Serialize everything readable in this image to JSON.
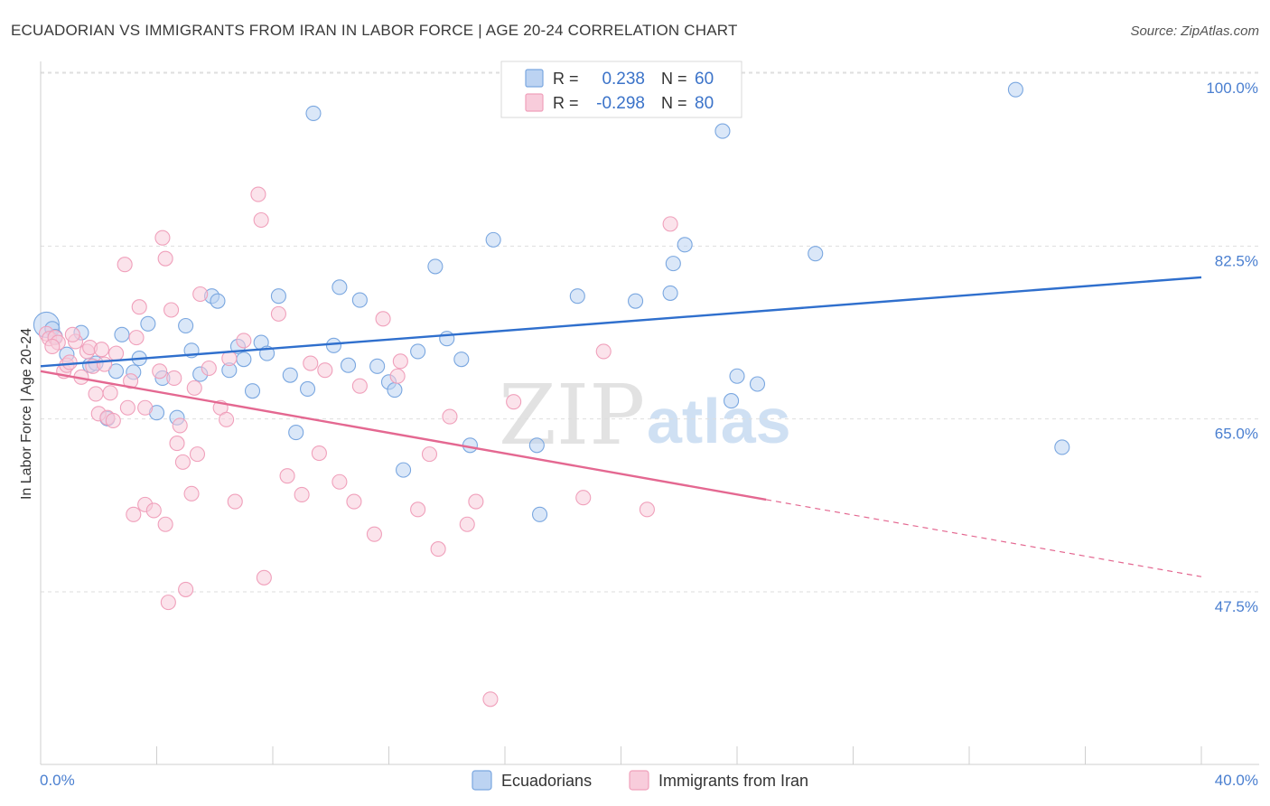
{
  "chart_data": {
    "type": "scatter",
    "title": "ECUADORIAN VS IMMIGRANTS FROM IRAN IN LABOR FORCE | AGE 20-24 CORRELATION CHART",
    "source": "Source: ZipAtlas.com",
    "xlabel": "",
    "ylabel": "In Labor Force | Age 20-24",
    "xlim": [
      0,
      40
    ],
    "ylim": [
      30,
      101.5
    ],
    "x_tick_labels": [
      {
        "value": 0,
        "label": "0.0%"
      },
      {
        "value": 40,
        "label": "40.0%"
      }
    ],
    "y_tick_labels": [
      {
        "value": 100,
        "label": "100.0%"
      },
      {
        "value": 82.5,
        "label": "82.5%"
      },
      {
        "value": 65,
        "label": "65.0%"
      },
      {
        "value": 47.5,
        "label": "47.5%"
      }
    ],
    "watermark": {
      "part1": "ZIP",
      "part2": "atlas"
    },
    "legend_stats": [
      {
        "r_label": "R =",
        "r_value": "0.238",
        "n_label": "N =",
        "n_value": "60"
      },
      {
        "r_label": "R =",
        "r_value": "-0.298",
        "n_label": "N =",
        "n_value": "80"
      }
    ],
    "series": [
      {
        "name": "Ecuadorians",
        "color": "#7aa7e0",
        "fill": "#bcd3f2",
        "line_color": "#2f6fcd",
        "trend": {
          "x0": 0,
          "y0": 71.8,
          "x1": 40,
          "y1": 80.8
        },
        "points": [
          [
            0.2,
            76.0
          ],
          [
            0.4,
            75.6
          ],
          [
            0.5,
            74.8
          ],
          [
            0.9,
            73.0
          ],
          [
            1.4,
            75.2
          ],
          [
            1.7,
            71.9
          ],
          [
            1.9,
            72.1
          ],
          [
            2.3,
            66.5
          ],
          [
            2.6,
            71.3
          ],
          [
            2.8,
            75.0
          ],
          [
            3.2,
            71.2
          ],
          [
            3.4,
            72.6
          ],
          [
            3.7,
            76.1
          ],
          [
            4.0,
            67.1
          ],
          [
            4.2,
            70.6
          ],
          [
            4.7,
            66.6
          ],
          [
            5.0,
            75.9
          ],
          [
            5.2,
            73.4
          ],
          [
            5.5,
            71.0
          ],
          [
            5.9,
            78.9
          ],
          [
            6.1,
            78.4
          ],
          [
            6.5,
            71.4
          ],
          [
            6.8,
            73.8
          ],
          [
            7.0,
            72.5
          ],
          [
            7.3,
            69.3
          ],
          [
            7.6,
            74.2
          ],
          [
            7.8,
            73.1
          ],
          [
            8.2,
            78.9
          ],
          [
            8.6,
            70.9
          ],
          [
            8.8,
            65.1
          ],
          [
            9.2,
            69.5
          ],
          [
            9.4,
            97.4
          ],
          [
            10.1,
            73.9
          ],
          [
            10.3,
            79.8
          ],
          [
            10.6,
            71.9
          ],
          [
            11.0,
            78.5
          ],
          [
            11.6,
            71.8
          ],
          [
            12.0,
            70.2
          ],
          [
            12.2,
            69.4
          ],
          [
            12.5,
            61.3
          ],
          [
            13.0,
            73.3
          ],
          [
            13.6,
            81.9
          ],
          [
            14.0,
            74.6
          ],
          [
            14.5,
            72.5
          ],
          [
            14.8,
            63.8
          ],
          [
            15.6,
            84.6
          ],
          [
            17.1,
            63.8
          ],
          [
            17.2,
            56.8
          ],
          [
            18.5,
            78.9
          ],
          [
            20.5,
            78.4
          ],
          [
            21.7,
            79.2
          ],
          [
            21.8,
            82.2
          ],
          [
            22.2,
            84.1
          ],
          [
            23.5,
            95.6
          ],
          [
            23.8,
            68.3
          ],
          [
            24.0,
            70.8
          ],
          [
            24.7,
            70.0
          ],
          [
            26.7,
            83.2
          ],
          [
            33.6,
            99.8
          ],
          [
            35.2,
            63.6
          ]
        ]
      },
      {
        "name": "Immigrants from Iran",
        "color": "#f0a0bb",
        "fill": "#f8ccdb",
        "line_color": "#e46891",
        "trend": {
          "x0": 0,
          "y0": 71.3,
          "x1": 25.0,
          "y1": 58.3
        },
        "trend_ext": {
          "x0": 25.0,
          "y0": 58.3,
          "x1": 40,
          "y1": 50.5
        },
        "points": [
          [
            0.2,
            75.1
          ],
          [
            0.3,
            74.6
          ],
          [
            0.5,
            74.7
          ],
          [
            0.6,
            74.2
          ],
          [
            0.8,
            71.3
          ],
          [
            0.9,
            71.9
          ],
          [
            1.0,
            72.2
          ],
          [
            1.2,
            74.3
          ],
          [
            1.4,
            70.7
          ],
          [
            1.6,
            73.3
          ],
          [
            1.7,
            73.7
          ],
          [
            1.8,
            71.8
          ],
          [
            1.9,
            69.0
          ],
          [
            2.0,
            67.0
          ],
          [
            2.2,
            72.0
          ],
          [
            2.3,
            66.6
          ],
          [
            2.4,
            69.1
          ],
          [
            2.5,
            66.3
          ],
          [
            2.6,
            73.1
          ],
          [
            2.9,
            82.1
          ],
          [
            3.0,
            67.6
          ],
          [
            3.1,
            70.3
          ],
          [
            3.2,
            56.8
          ],
          [
            3.3,
            74.7
          ],
          [
            3.4,
            77.8
          ],
          [
            3.6,
            57.8
          ],
          [
            3.6,
            67.6
          ],
          [
            3.9,
            57.2
          ],
          [
            4.1,
            71.3
          ],
          [
            4.2,
            84.8
          ],
          [
            4.3,
            55.8
          ],
          [
            4.3,
            82.7
          ],
          [
            4.4,
            47.9
          ],
          [
            4.5,
            77.5
          ],
          [
            4.6,
            70.6
          ],
          [
            4.7,
            64.0
          ],
          [
            4.8,
            65.8
          ],
          [
            4.9,
            62.1
          ],
          [
            5.0,
            49.2
          ],
          [
            5.2,
            58.9
          ],
          [
            5.3,
            69.6
          ],
          [
            5.4,
            62.9
          ],
          [
            5.5,
            79.1
          ],
          [
            6.2,
            67.6
          ],
          [
            6.4,
            66.4
          ],
          [
            6.5,
            72.6
          ],
          [
            6.7,
            58.1
          ],
          [
            7.0,
            74.4
          ],
          [
            7.5,
            89.2
          ],
          [
            7.6,
            86.6
          ],
          [
            7.7,
            50.4
          ],
          [
            8.2,
            77.1
          ],
          [
            8.5,
            60.7
          ],
          [
            9.0,
            58.8
          ],
          [
            9.3,
            72.1
          ],
          [
            9.6,
            63.0
          ],
          [
            10.3,
            60.1
          ],
          [
            10.8,
            58.1
          ],
          [
            11.0,
            69.8
          ],
          [
            11.5,
            54.8
          ],
          [
            11.8,
            76.6
          ],
          [
            12.3,
            70.8
          ],
          [
            12.4,
            72.3
          ],
          [
            13.0,
            57.3
          ],
          [
            13.4,
            62.9
          ],
          [
            13.7,
            53.3
          ],
          [
            14.1,
            66.7
          ],
          [
            14.7,
            55.8
          ],
          [
            15.0,
            58.1
          ],
          [
            15.5,
            38.1
          ],
          [
            16.3,
            68.2
          ],
          [
            18.7,
            58.5
          ],
          [
            19.4,
            73.3
          ],
          [
            20.9,
            57.3
          ],
          [
            21.7,
            86.2
          ],
          [
            0.4,
            73.8
          ],
          [
            1.1,
            75.0
          ],
          [
            2.1,
            73.5
          ],
          [
            5.8,
            71.6
          ],
          [
            9.8,
            71.4
          ]
        ]
      }
    ],
    "legend_position": "bottom"
  }
}
